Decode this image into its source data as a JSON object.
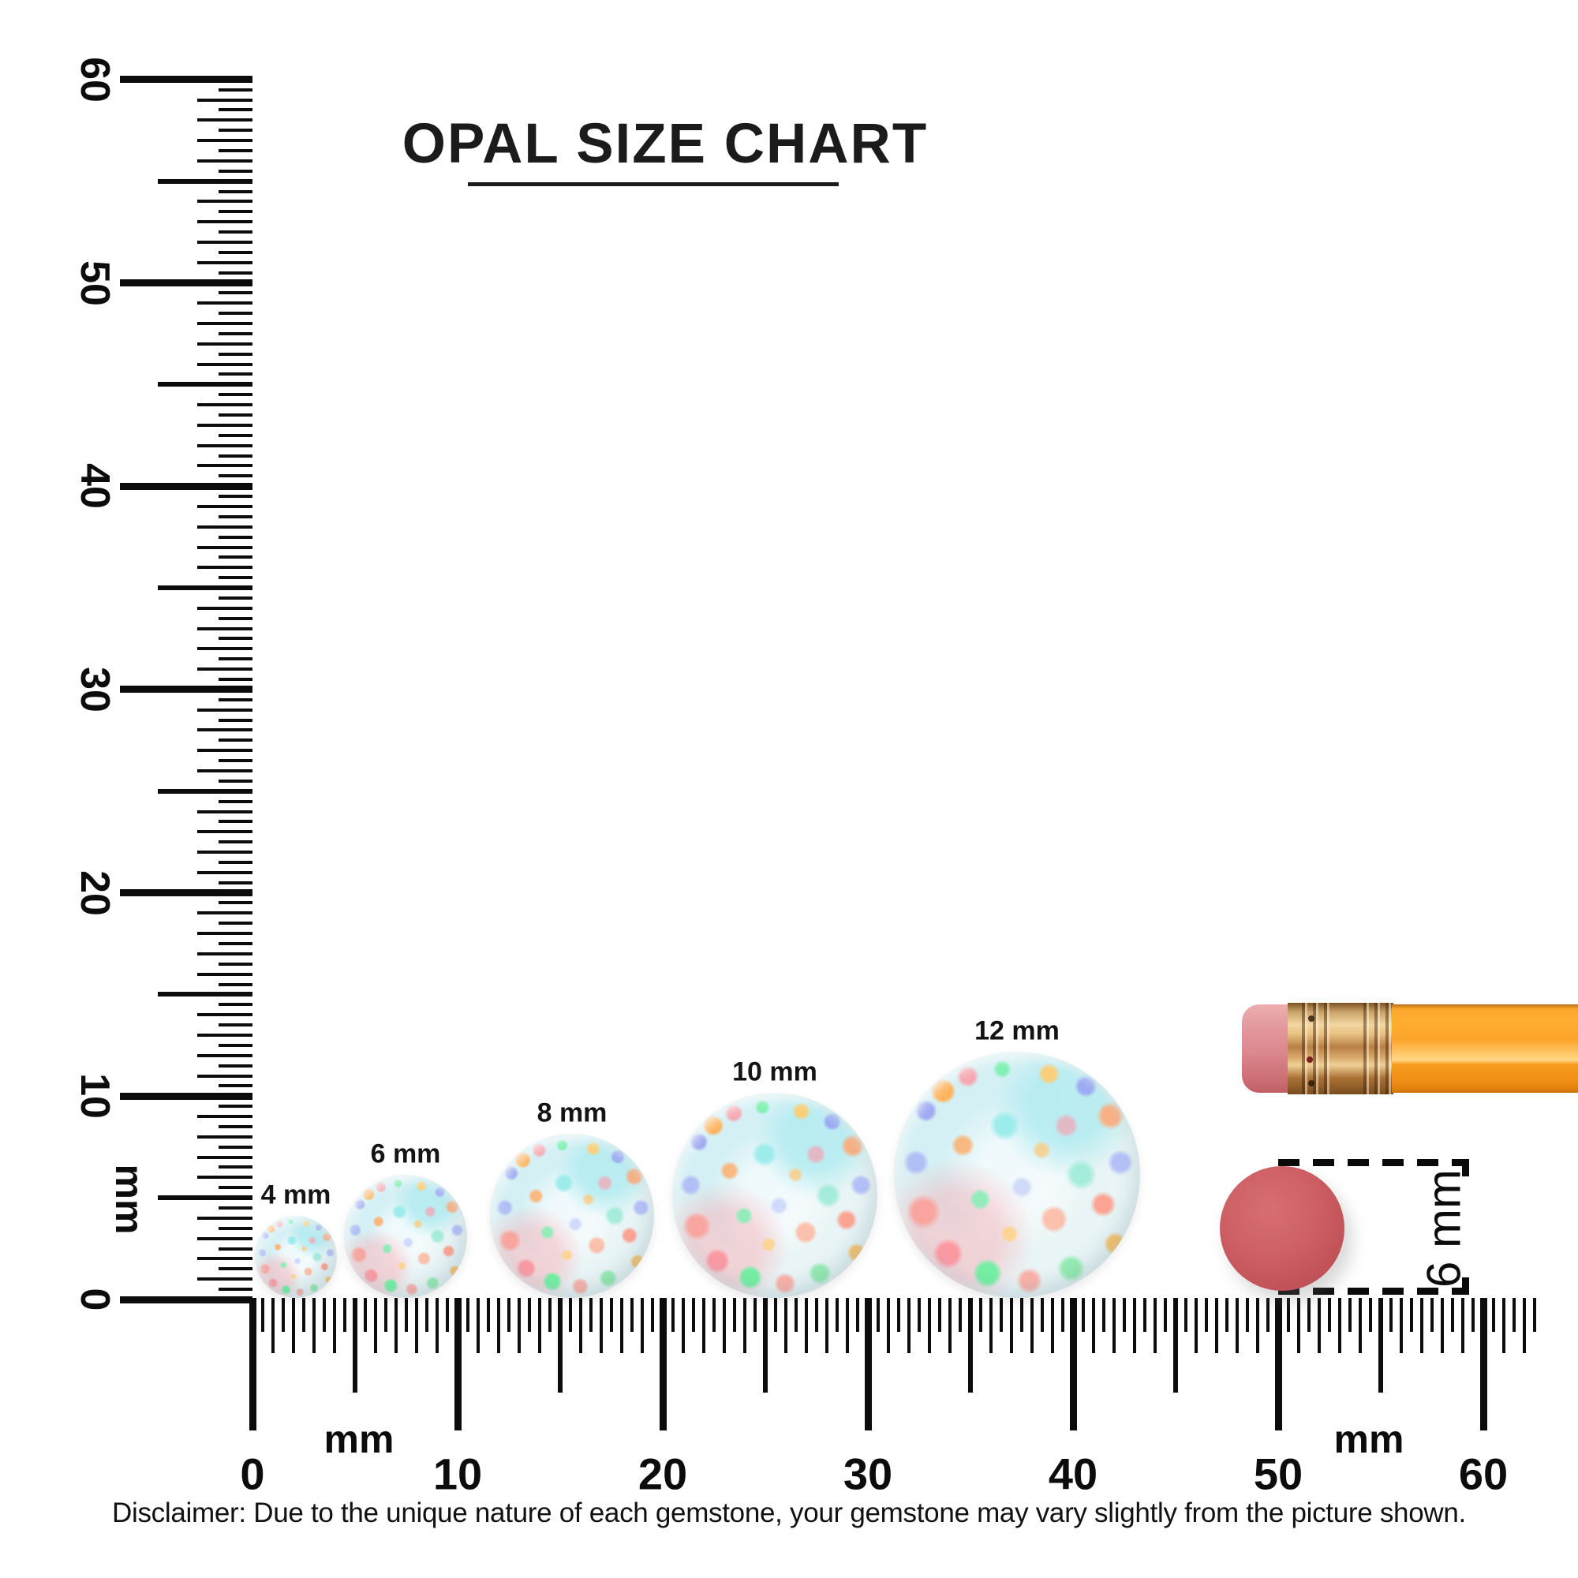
{
  "title": "OPAL SIZE CHART",
  "rulers": {
    "unit": "mm",
    "vertical": {
      "labels": [
        "0",
        "10",
        "20",
        "30",
        "40",
        "50",
        "60"
      ]
    },
    "horizontal": {
      "labels": [
        "0",
        "10",
        "20",
        "30",
        "40",
        "50",
        "60"
      ]
    }
  },
  "opals": [
    {
      "label": "4 mm",
      "size_mm": 4
    },
    {
      "label": "6 mm",
      "size_mm": 6
    },
    {
      "label": "8 mm",
      "size_mm": 8
    },
    {
      "label": "10 mm",
      "size_mm": 10
    },
    {
      "label": "12 mm",
      "size_mm": 12
    }
  ],
  "eraser_measure": {
    "label": "6 mm",
    "size_mm": 6
  },
  "disclaimer": "Disclaimer: Due to the unique nature of each gemstone, your gemstone may vary slightly from the picture shown.",
  "colors": {
    "ink": "#0c0c0c",
    "pencil_body_orange": "#fb9e27",
    "ferrule_gold": "#d9a05b",
    "eraser_pink": "#db878d",
    "eraser_top_red": "#cd5f64",
    "opal_base": "#e8f4f5"
  }
}
